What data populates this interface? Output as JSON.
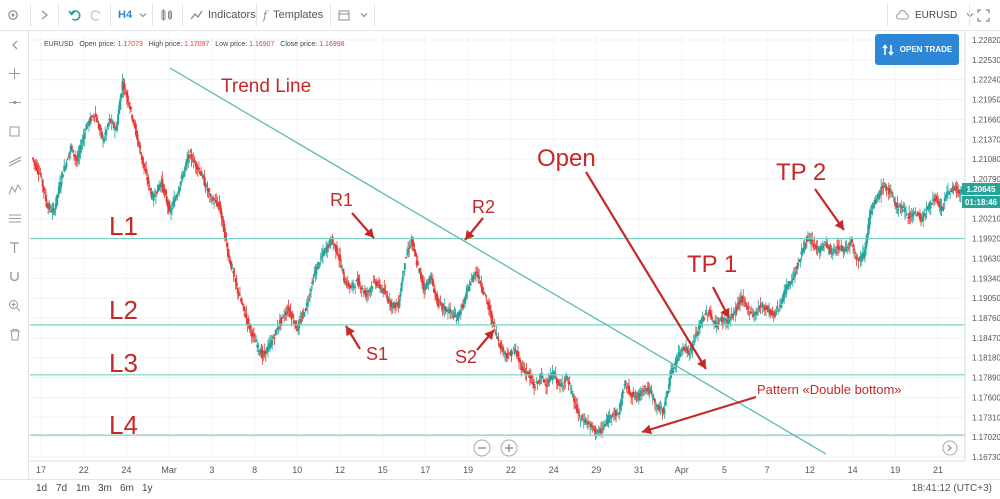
{
  "toolbar": {
    "interval": "H4",
    "indicators_label": "Indicators",
    "templates_label": "Templates",
    "symbol": "EURUSD"
  },
  "ohlc": {
    "symbol": "EURUSD",
    "open_label": "Open price:",
    "open": "1.17073",
    "high_label": "High price:",
    "high": "1.17097",
    "low_label": "Low price:",
    "low": "1.16907",
    "close_label": "Close price:",
    "close": "1.16998"
  },
  "open_trade_label": "OPEN TRADE",
  "timeframes": [
    "1d",
    "7d",
    "1m",
    "3m",
    "6m",
    "1y"
  ],
  "clock": "18:41:12 (UTC+3)",
  "colors": {
    "up": "#26a69a",
    "down": "#e53935",
    "annotation": "#c62828",
    "trendline": "#4db6ac",
    "accent": "#2e87d6"
  },
  "chart_data": {
    "type": "candlestick",
    "symbol": "EURUSD",
    "timeframe": "H4",
    "y_ticks": [
      "1.22820",
      "1.22530",
      "1.22240",
      "1.21950",
      "1.21660",
      "1.21370",
      "1.21080",
      "1.20790",
      "1.20210",
      "1.19920",
      "1.19630",
      "1.19340",
      "1.19050",
      "1.18760",
      "1.18470",
      "1.18180",
      "1.17890",
      "1.17600",
      "1.17310",
      "1.17020",
      "1.16730"
    ],
    "ylim": [
      1.1673,
      1.2282
    ],
    "x_ticks": [
      "17",
      "22",
      "24",
      "Mar",
      "3",
      "8",
      "10",
      "12",
      "15",
      "17",
      "19",
      "22",
      "24",
      "29",
      "31",
      "Apr",
      "5",
      "7",
      "12",
      "14",
      "19",
      "21"
    ],
    "last_price": "1.20645",
    "countdown": "01:18:46",
    "levels": [
      {
        "name": "L1",
        "price": 1.1992
      },
      {
        "name": "L2",
        "price": 1.1866
      },
      {
        "name": "L3",
        "price": 1.1793
      },
      {
        "name": "L4",
        "price": 1.1705
      }
    ],
    "annotations": [
      "Trend Line",
      "Open",
      "TP 2",
      "TP 1",
      "R1",
      "R2",
      "S1",
      "S2",
      "Pattern «Double bottom»"
    ],
    "price_path": [
      [
        0,
        1.211
      ],
      [
        8,
        1.2085
      ],
      [
        14,
        1.204
      ],
      [
        20,
        1.203
      ],
      [
        28,
        1.2085
      ],
      [
        36,
        1.2125
      ],
      [
        42,
        1.2105
      ],
      [
        50,
        1.2155
      ],
      [
        58,
        1.2175
      ],
      [
        66,
        1.2135
      ],
      [
        72,
        1.2165
      ],
      [
        78,
        1.215
      ],
      [
        84,
        1.222
      ],
      [
        90,
        1.219
      ],
      [
        96,
        1.215
      ],
      [
        104,
        1.2095
      ],
      [
        112,
        1.205
      ],
      [
        120,
        1.2075
      ],
      [
        128,
        1.203
      ],
      [
        136,
        1.2065
      ],
      [
        146,
        1.2115
      ],
      [
        156,
        1.209
      ],
      [
        166,
        1.205
      ],
      [
        174,
        1.204
      ],
      [
        182,
        1.197
      ],
      [
        190,
        1.192
      ],
      [
        198,
        1.188
      ],
      [
        206,
        1.1845
      ],
      [
        214,
        1.182
      ],
      [
        222,
        1.184
      ],
      [
        230,
        1.187
      ],
      [
        238,
        1.189
      ],
      [
        246,
        1.186
      ],
      [
        254,
        1.189
      ],
      [
        262,
        1.194
      ],
      [
        270,
        1.197
      ],
      [
        278,
        1.199
      ],
      [
        284,
        1.197
      ],
      [
        290,
        1.193
      ],
      [
        296,
        1.192
      ],
      [
        302,
        1.193
      ],
      [
        310,
        1.191
      ],
      [
        318,
        1.193
      ],
      [
        326,
        1.1915
      ],
      [
        334,
        1.1895
      ],
      [
        340,
        1.1895
      ],
      [
        346,
        1.196
      ],
      [
        352,
        1.199
      ],
      [
        358,
        1.195
      ],
      [
        364,
        1.192
      ],
      [
        370,
        1.1935
      ],
      [
        376,
        1.19
      ],
      [
        382,
        1.189
      ],
      [
        388,
        1.1885
      ],
      [
        394,
        1.1875
      ],
      [
        400,
        1.1895
      ],
      [
        406,
        1.1925
      ],
      [
        412,
        1.1945
      ],
      [
        418,
        1.192
      ],
      [
        424,
        1.189
      ],
      [
        430,
        1.1855
      ],
      [
        436,
        1.183
      ],
      [
        442,
        1.182
      ],
      [
        448,
        1.183
      ],
      [
        454,
        1.1805
      ],
      [
        460,
        1.1795
      ],
      [
        466,
        1.1775
      ],
      [
        472,
        1.179
      ],
      [
        478,
        1.178
      ],
      [
        484,
        1.1795
      ],
      [
        490,
        1.1775
      ],
      [
        496,
        1.179
      ],
      [
        502,
        1.176
      ],
      [
        508,
        1.173
      ],
      [
        514,
        1.1725
      ],
      [
        520,
        1.1715
      ],
      [
        526,
        1.1708
      ],
      [
        532,
        1.172
      ],
      [
        538,
        1.1738
      ],
      [
        544,
        1.1735
      ],
      [
        550,
        1.178
      ],
      [
        556,
        1.1765
      ],
      [
        562,
        1.176
      ],
      [
        568,
        1.1775
      ],
      [
        574,
        1.1768
      ],
      [
        580,
        1.1745
      ],
      [
        586,
        1.174
      ],
      [
        592,
        1.179
      ],
      [
        598,
        1.1815
      ],
      [
        604,
        1.1835
      ],
      [
        610,
        1.1825
      ],
      [
        616,
        1.185
      ],
      [
        622,
        1.1875
      ],
      [
        628,
        1.1885
      ],
      [
        634,
        1.1865
      ],
      [
        640,
        1.1875
      ],
      [
        646,
        1.187
      ],
      [
        652,
        1.1885
      ],
      [
        658,
        1.1905
      ],
      [
        664,
        1.189
      ],
      [
        670,
        1.188
      ],
      [
        676,
        1.1895
      ],
      [
        682,
        1.189
      ],
      [
        688,
        1.188
      ],
      [
        694,
        1.1895
      ],
      [
        700,
        1.192
      ],
      [
        706,
        1.1935
      ],
      [
        712,
        1.196
      ],
      [
        718,
        1.199
      ],
      [
        724,
        1.1985
      ],
      [
        730,
        1.1975
      ],
      [
        736,
        1.1985
      ],
      [
        742,
        1.197
      ],
      [
        748,
        1.198
      ],
      [
        754,
        1.1975
      ],
      [
        760,
        1.199
      ],
      [
        766,
        1.196
      ],
      [
        772,
        1.197
      ],
      [
        778,
        1.203
      ],
      [
        784,
        1.205
      ],
      [
        790,
        1.207
      ],
      [
        796,
        1.206
      ],
      [
        802,
        1.204
      ],
      [
        808,
        1.2035
      ],
      [
        814,
        1.2025
      ],
      [
        820,
        1.203
      ],
      [
        826,
        1.202
      ],
      [
        832,
        1.204
      ],
      [
        838,
        1.205
      ],
      [
        844,
        1.2035
      ],
      [
        850,
        1.206
      ],
      [
        856,
        1.2065
      ],
      [
        862,
        1.206
      ]
    ]
  }
}
